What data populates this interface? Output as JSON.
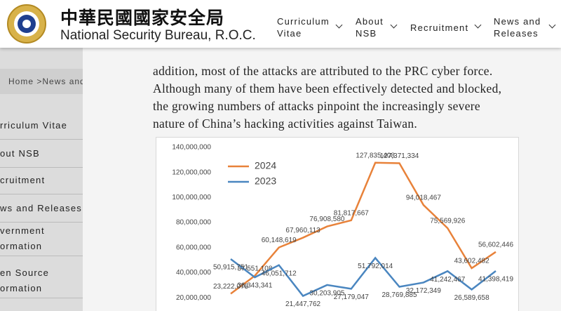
{
  "header": {
    "title_zh": "中華民國國家安全局",
    "title_en": "National Security Bureau, R.O.C."
  },
  "nav": [
    [
      "Curriculum",
      "Vitae"
    ],
    [
      "About",
      "NSB"
    ],
    [
      "Recruitment"
    ],
    [
      "News and",
      "Releases"
    ]
  ],
  "sidebar": {
    "breadcrumb": "Home >News and",
    "items": [
      [
        "rriculum Vitae"
      ],
      [
        "out NSB"
      ],
      [
        "cruitment"
      ],
      [
        "ws and Releases"
      ],
      [
        "vernment",
        "ormation"
      ],
      [
        "en Source",
        "ormation"
      ]
    ]
  },
  "article": {
    "lines": [
      "addition, most of the attacks are attributed to the PRC cyber force.",
      "Although many of them have been effectively detected and blocked,",
      "the growing numbers of attacks pinpoint the increasingly severe",
      "nature of China’s hacking activities against Taiwan."
    ]
  },
  "chart_data": {
    "type": "line",
    "categories": [
      null,
      null,
      null,
      null,
      null,
      null,
      null,
      null,
      null,
      null,
      null,
      null
    ],
    "series": [
      {
        "name": "2024",
        "color": "#e8823a",
        "values": [
          23222078,
          37551108,
          60148619,
          67960113,
          76908580,
          81817667,
          127835408,
          127371334,
          94018467,
          75569926,
          43602482,
          56602446
        ],
        "value_labels": [
          "23,222,078",
          "37,551,108",
          "60,148,619",
          "67,960,113",
          "76,908,580",
          "81,817,667",
          "127,835,408",
          "127,371,334",
          "94,018,467",
          "75,569,926",
          "43,602,482",
          "56,602,446"
        ]
      },
      {
        "name": "2023",
        "color": "#4a86c0",
        "values": [
          50915751,
          36343341,
          46051712,
          21447762,
          30203905,
          27179047,
          51792014,
          28769885,
          32172349,
          41242467,
          26589658,
          41398419
        ],
        "value_labels": [
          "50,915,751",
          "36,343,341",
          "46,051,712",
          "21,447,762",
          "30,203,905",
          "27,179,047",
          "51,792,014",
          "28,769,885",
          "32,172,349",
          "41,242,467",
          "26,589,658",
          "41,398,419"
        ]
      }
    ],
    "ylim": [
      10000000,
      140000000
    ],
    "yticks": [
      {
        "value": 20000000,
        "label": "20,000,000"
      },
      {
        "value": 40000000,
        "label": "40,000,000"
      },
      {
        "value": 60000000,
        "label": "60,000,000"
      },
      {
        "value": 80000000,
        "label": "80,000,000"
      },
      {
        "value": 100000000,
        "label": "100,000,000"
      },
      {
        "value": 120000000,
        "label": "120,000,000"
      },
      {
        "value": 140000000,
        "label": "140,000,000"
      }
    ],
    "grid": false,
    "legend": "upper-left"
  }
}
